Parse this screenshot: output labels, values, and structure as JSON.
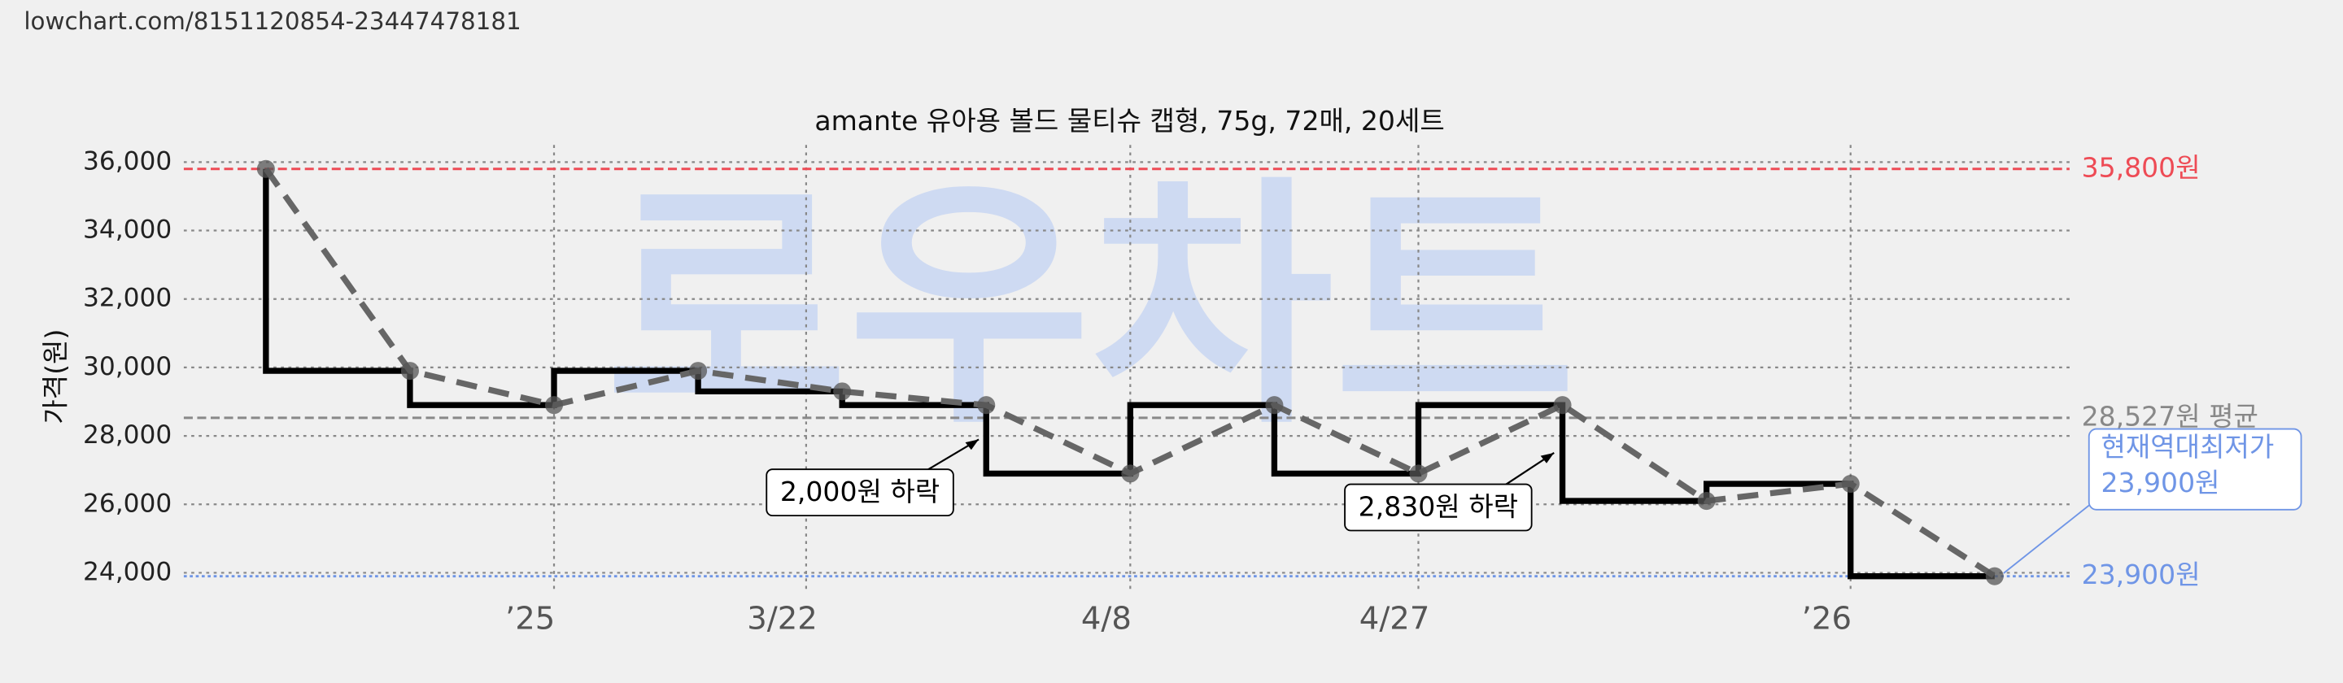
{
  "header": {
    "url": "lowchart.com/8151120854-23447478181"
  },
  "chart_data": {
    "type": "line",
    "title": "amante 유아용 볼드 물티슈 캡형, 75g, 72매, 20세트",
    "y_label": "가격(원)",
    "watermark": "로우차트",
    "x": [
      0,
      1,
      2,
      3,
      4,
      5,
      6,
      7,
      8,
      9,
      10,
      11,
      12
    ],
    "series": [
      {
        "color": "#666666",
        "step_color": "#000000",
        "values": [
          35800,
          29900,
          28900,
          29900,
          29300,
          28900,
          26900,
          28900,
          26900,
          28900,
          26100,
          26600,
          23900
        ]
      }
    ],
    "xlim": [
      -0.57,
      12.52
    ],
    "xticks": [
      {
        "value": 2,
        "label": "’25"
      },
      {
        "value": 3.75,
        "label": "3/22"
      },
      {
        "value": 6,
        "label": "4/8"
      },
      {
        "value": 8,
        "label": "4/27"
      },
      {
        "value": 11,
        "label": "’26"
      }
    ],
    "ylim": [
      23400,
      36500
    ],
    "yticks": [
      {
        "value": 24000,
        "label": "24,000"
      },
      {
        "value": 26000,
        "label": "26,000"
      },
      {
        "value": 28000,
        "label": "28,000"
      },
      {
        "value": 30000,
        "label": "30,000"
      },
      {
        "value": 32000,
        "label": "32,000"
      },
      {
        "value": 34000,
        "label": "34,000"
      },
      {
        "value": 36000,
        "label": "36,000"
      }
    ],
    "grid": true,
    "reference_lines": [
      {
        "value": 35800,
        "label": "35,800원",
        "color": "#ee4b55",
        "style": "dashed"
      },
      {
        "value": 28527,
        "label": "28,527원 평균",
        "color": "#888888",
        "style": "dashed"
      },
      {
        "value": 23900,
        "label": "23,900원",
        "color": "#6f95e6",
        "style": "dotted"
      }
    ],
    "annotations": [
      {
        "text": "2,000원 하락"
      },
      {
        "text": "2,830원 하락"
      }
    ],
    "callout": {
      "lines": [
        "현재역대최저가",
        "23,900원"
      ],
      "color": "#6f95e6"
    }
  }
}
